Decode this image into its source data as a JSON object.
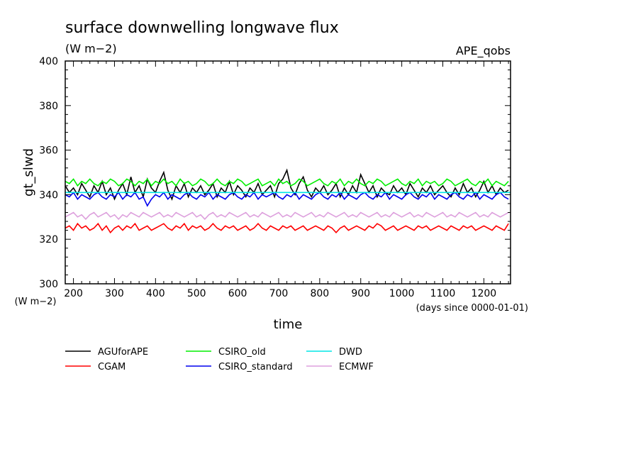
{
  "chart_data": {
    "type": "line",
    "title": "surface downwelling longwave flux",
    "subtitle": "(W m−2)",
    "annotation_right": "APE_qobs",
    "xlabel": "time",
    "x_units_label": "(days since 0000-01-01)",
    "ylabel": "gt_slwd",
    "y_units_label": "(W m−2)",
    "xlim": [
      180,
      1265
    ],
    "ylim": [
      300,
      400
    ],
    "x_ticks": [
      200,
      300,
      400,
      500,
      600,
      700,
      800,
      900,
      1000,
      1100,
      1200
    ],
    "y_ticks": [
      300,
      320,
      340,
      360,
      380,
      400
    ],
    "grid": false,
    "legend_position": "below plot",
    "series": [
      {
        "name": "AGUforAPE",
        "color": "#000000",
        "x": [
          180,
          190,
          200,
          210,
          220,
          230,
          240,
          250,
          260,
          270,
          280,
          290,
          300,
          310,
          320,
          330,
          340,
          350,
          360,
          370,
          380,
          390,
          400,
          410,
          420,
          430,
          440,
          450,
          460,
          470,
          480,
          490,
          500,
          510,
          520,
          530,
          540,
          550,
          560,
          570,
          580,
          590,
          600,
          610,
          620,
          630,
          640,
          650,
          660,
          670,
          680,
          690,
          700,
          710,
          720,
          730,
          740,
          750,
          760,
          770,
          780,
          790,
          800,
          810,
          820,
          830,
          840,
          850,
          860,
          870,
          880,
          890,
          900,
          910,
          920,
          930,
          940,
          950,
          960,
          970,
          980,
          990,
          1000,
          1010,
          1020,
          1030,
          1040,
          1050,
          1060,
          1070,
          1080,
          1090,
          1100,
          1110,
          1120,
          1130,
          1140,
          1150,
          1160,
          1170,
          1180,
          1190,
          1200,
          1210,
          1220,
          1230,
          1240,
          1250,
          1260
        ],
        "y": [
          344,
          341,
          343,
          340,
          345,
          342,
          339,
          344,
          341,
          346,
          340,
          343,
          338,
          342,
          345,
          340,
          348,
          341,
          344,
          339,
          347,
          343,
          341,
          346,
          350,
          342,
          338,
          344,
          341,
          345,
          339,
          343,
          341,
          344,
          340,
          342,
          345,
          339,
          343,
          341,
          346,
          340,
          344,
          342,
          339,
          343,
          341,
          345,
          340,
          342,
          344,
          339,
          345,
          347,
          351,
          343,
          340,
          345,
          348,
          342,
          339,
          343,
          341,
          344,
          340,
          342,
          345,
          339,
          343,
          340,
          344,
          341,
          349,
          345,
          341,
          344,
          339,
          343,
          341,
          340,
          344,
          341,
          343,
          340,
          345,
          342,
          339,
          343,
          341,
          344,
          340,
          342,
          344,
          341,
          339,
          343,
          340,
          345,
          341,
          343,
          339,
          342,
          346,
          341,
          344,
          340,
          343,
          341,
          342
        ]
      },
      {
        "name": "CGAM",
        "color": "#ff0000",
        "x": [
          180,
          190,
          200,
          210,
          220,
          230,
          240,
          250,
          260,
          270,
          280,
          290,
          300,
          310,
          320,
          330,
          340,
          350,
          360,
          370,
          380,
          390,
          400,
          410,
          420,
          430,
          440,
          450,
          460,
          470,
          480,
          490,
          500,
          510,
          520,
          530,
          540,
          550,
          560,
          570,
          580,
          590,
          600,
          610,
          620,
          630,
          640,
          650,
          660,
          670,
          680,
          690,
          700,
          710,
          720,
          730,
          740,
          750,
          760,
          770,
          780,
          790,
          800,
          810,
          820,
          830,
          840,
          850,
          860,
          870,
          880,
          890,
          900,
          910,
          920,
          930,
          940,
          950,
          960,
          970,
          980,
          990,
          1000,
          1010,
          1020,
          1030,
          1040,
          1050,
          1060,
          1070,
          1080,
          1090,
          1100,
          1110,
          1120,
          1130,
          1140,
          1150,
          1160,
          1170,
          1180,
          1190,
          1200,
          1210,
          1220,
          1230,
          1240,
          1250,
          1260
        ],
        "y": [
          325,
          326,
          324,
          327,
          325,
          326,
          324,
          325,
          327,
          324,
          326,
          323,
          325,
          326,
          324,
          326,
          325,
          327,
          324,
          325,
          326,
          324,
          325,
          326,
          327,
          325,
          324,
          326,
          325,
          327,
          324,
          326,
          325,
          326,
          324,
          325,
          327,
          325,
          324,
          326,
          325,
          326,
          324,
          325,
          326,
          324,
          325,
          327,
          325,
          324,
          326,
          325,
          324,
          326,
          325,
          326,
          324,
          325,
          326,
          324,
          325,
          326,
          325,
          324,
          326,
          325,
          323,
          325,
          326,
          324,
          325,
          326,
          325,
          324,
          326,
          325,
          327,
          326,
          324,
          325,
          326,
          324,
          325,
          326,
          325,
          324,
          326,
          325,
          326,
          324,
          325,
          326,
          325,
          324,
          326,
          325,
          324,
          326,
          325,
          326,
          324,
          325,
          326,
          325,
          324,
          326,
          325,
          324,
          327
        ]
      },
      {
        "name": "CSIRO_old",
        "color": "#00ee00",
        "x": [
          180,
          190,
          200,
          210,
          220,
          230,
          240,
          250,
          260,
          270,
          280,
          290,
          300,
          310,
          320,
          330,
          340,
          350,
          360,
          370,
          380,
          390,
          400,
          410,
          420,
          430,
          440,
          450,
          460,
          470,
          480,
          490,
          500,
          510,
          520,
          530,
          540,
          550,
          560,
          570,
          580,
          590,
          600,
          610,
          620,
          630,
          640,
          650,
          660,
          670,
          680,
          690,
          700,
          710,
          720,
          730,
          740,
          750,
          760,
          770,
          780,
          790,
          800,
          810,
          820,
          830,
          840,
          850,
          860,
          870,
          880,
          890,
          900,
          910,
          920,
          930,
          940,
          950,
          960,
          970,
          980,
          990,
          1000,
          1010,
          1020,
          1030,
          1040,
          1050,
          1060,
          1070,
          1080,
          1090,
          1100,
          1110,
          1120,
          1130,
          1140,
          1150,
          1160,
          1170,
          1180,
          1190,
          1200,
          1210,
          1220,
          1230,
          1240,
          1250,
          1260
        ],
        "y": [
          346,
          345,
          347,
          344,
          346,
          345,
          347,
          345,
          344,
          346,
          345,
          347,
          346,
          344,
          345,
          347,
          346,
          344,
          346,
          345,
          347,
          344,
          346,
          345,
          347,
          345,
          346,
          344,
          347,
          345,
          346,
          344,
          345,
          347,
          346,
          344,
          345,
          347,
          345,
          344,
          346,
          345,
          347,
          346,
          344,
          345,
          346,
          347,
          344,
          345,
          346,
          344,
          347,
          345,
          346,
          344,
          345,
          347,
          346,
          344,
          345,
          346,
          347,
          345,
          344,
          346,
          345,
          347,
          344,
          346,
          345,
          347,
          345,
          344,
          346,
          345,
          347,
          346,
          344,
          345,
          346,
          347,
          345,
          344,
          346,
          345,
          347,
          344,
          346,
          345,
          346,
          344,
          345,
          347,
          346,
          344,
          345,
          346,
          347,
          345,
          344,
          346,
          345,
          347,
          344,
          346,
          345,
          344,
          346
        ]
      },
      {
        "name": "CSIRO_standard",
        "color": "#0000ee",
        "x": [
          180,
          190,
          200,
          210,
          220,
          230,
          240,
          250,
          260,
          270,
          280,
          290,
          300,
          310,
          320,
          330,
          340,
          350,
          360,
          370,
          380,
          390,
          400,
          410,
          420,
          430,
          440,
          450,
          460,
          470,
          480,
          490,
          500,
          510,
          520,
          530,
          540,
          550,
          560,
          570,
          580,
          590,
          600,
          610,
          620,
          630,
          640,
          650,
          660,
          670,
          680,
          690,
          700,
          710,
          720,
          730,
          740,
          750,
          760,
          770,
          780,
          790,
          800,
          810,
          820,
          830,
          840,
          850,
          860,
          870,
          880,
          890,
          900,
          910,
          920,
          930,
          940,
          950,
          960,
          970,
          980,
          990,
          1000,
          1010,
          1020,
          1030,
          1040,
          1050,
          1060,
          1070,
          1080,
          1090,
          1100,
          1110,
          1120,
          1130,
          1140,
          1150,
          1160,
          1170,
          1180,
          1190,
          1200,
          1210,
          1220,
          1230,
          1240,
          1250,
          1260
        ],
        "y": [
          340,
          339,
          341,
          338,
          340,
          339,
          338,
          340,
          341,
          339,
          338,
          340,
          339,
          341,
          338,
          340,
          339,
          341,
          338,
          339,
          335,
          338,
          340,
          339,
          341,
          338,
          340,
          339,
          338,
          340,
          341,
          339,
          338,
          340,
          339,
          341,
          338,
          340,
          339,
          338,
          340,
          341,
          339,
          338,
          340,
          339,
          341,
          338,
          340,
          339,
          340,
          341,
          339,
          338,
          340,
          339,
          341,
          338,
          340,
          339,
          338,
          340,
          341,
          339,
          338,
          340,
          339,
          341,
          338,
          340,
          339,
          338,
          340,
          341,
          339,
          338,
          340,
          339,
          341,
          338,
          340,
          339,
          338,
          340,
          341,
          339,
          338,
          340,
          339,
          341,
          338,
          340,
          339,
          338,
          340,
          341,
          339,
          338,
          340,
          339,
          341,
          338,
          340,
          339,
          338,
          340,
          341,
          339,
          338
        ]
      },
      {
        "name": "DWD",
        "color": "#00e5e5",
        "x": [
          180,
          1265
        ],
        "y": [
          341,
          341
        ]
      },
      {
        "name": "ECMWF",
        "color": "#dda0dd",
        "x": [
          180,
          190,
          200,
          210,
          220,
          230,
          240,
          250,
          260,
          270,
          280,
          290,
          300,
          310,
          320,
          330,
          340,
          350,
          360,
          370,
          380,
          390,
          400,
          410,
          420,
          430,
          440,
          450,
          460,
          470,
          480,
          490,
          500,
          510,
          520,
          530,
          540,
          550,
          560,
          570,
          580,
          590,
          600,
          610,
          620,
          630,
          640,
          650,
          660,
          670,
          680,
          690,
          700,
          710,
          720,
          730,
          740,
          750,
          760,
          770,
          780,
          790,
          800,
          810,
          820,
          830,
          840,
          850,
          860,
          870,
          880,
          890,
          900,
          910,
          920,
          930,
          940,
          950,
          960,
          970,
          980,
          990,
          1000,
          1010,
          1020,
          1030,
          1040,
          1050,
          1060,
          1070,
          1080,
          1090,
          1100,
          1110,
          1120,
          1130,
          1140,
          1150,
          1160,
          1170,
          1180,
          1190,
          1200,
          1210,
          1220,
          1230,
          1240,
          1250,
          1260
        ],
        "y": [
          330,
          331,
          332,
          330,
          331,
          329,
          331,
          332,
          330,
          331,
          332,
          330,
          331,
          329,
          331,
          330,
          332,
          331,
          330,
          332,
          331,
          330,
          331,
          332,
          330,
          331,
          330,
          332,
          331,
          330,
          331,
          332,
          330,
          331,
          329,
          331,
          332,
          330,
          331,
          330,
          332,
          331,
          330,
          331,
          332,
          330,
          331,
          330,
          332,
          331,
          330,
          331,
          332,
          330,
          331,
          330,
          332,
          331,
          330,
          331,
          332,
          330,
          331,
          330,
          332,
          331,
          330,
          331,
          332,
          330,
          331,
          330,
          332,
          331,
          330,
          331,
          332,
          330,
          331,
          330,
          332,
          331,
          330,
          331,
          332,
          330,
          331,
          330,
          332,
          331,
          330,
          331,
          332,
          330,
          331,
          330,
          332,
          331,
          330,
          331,
          332,
          330,
          331,
          330,
          332,
          331,
          330,
          331,
          332
        ]
      }
    ]
  }
}
